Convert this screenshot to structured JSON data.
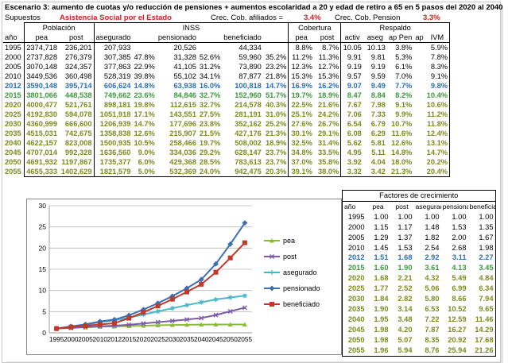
{
  "title": "Escenario 3:  aumento de cuotas y/o reducción de pensiones + aumentos escolaridad a 20 y edad de retiro a 65 en 5 pasos del 2020 al 2040",
  "supuestos": {
    "label": "Supuestos",
    "value": "Asistencia Social por el Estado",
    "crec_afil_label": "Crec. Cob. afiliados =",
    "crec_afil_value": "3.4%",
    "crec_pen_label": "Crec. Cob. Pension",
    "crec_pen_value": "3.3%"
  },
  "groups": {
    "poblacion": "Población",
    "inss": "INSS",
    "cobertura": "Cobertura",
    "respaldo": "Respaldo"
  },
  "columns": [
    "año",
    "pea",
    "post",
    "asegurado",
    "",
    "pensionado",
    "",
    "beneficiado",
    "",
    "pea",
    "post",
    "activ",
    "aseg",
    "ap Pen",
    "ap",
    "IVM"
  ],
  "rows": [
    {
      "style": "normal",
      "cells": [
        "1995",
        "2374,718",
        "236,201",
        "207,933",
        "",
        "20,526",
        "",
        "44,334",
        "",
        "8.8%",
        "8.7%",
        "10.05",
        "10.13",
        "3.8%",
        "",
        "5.9%"
      ]
    },
    {
      "style": "normal",
      "cells": [
        "2000",
        "2737,828",
        "276,379",
        "307,385",
        "47.8%",
        "31,328",
        "52.6%",
        "59,960",
        "35.2%",
        "11.2%",
        "11.3%",
        "9.91",
        "9.81",
        "5.3%",
        "",
        "7.8%"
      ]
    },
    {
      "style": "normal",
      "cells": [
        "2005",
        "3070,148",
        "324,357",
        "377,863",
        "22.9%",
        "41,105",
        "31.2%",
        "73,890",
        "23.2%",
        "12.3%",
        "12.7%",
        "9.19",
        "9.19",
        "6.1%",
        "",
        "8.3%"
      ]
    },
    {
      "style": "normal",
      "cells": [
        "2010",
        "3449,536",
        "360,498",
        "528,319",
        "39.8%",
        "55,102",
        "34.1%",
        "87,877",
        "21.8%",
        "15.3%",
        "15.3%",
        "9.57",
        "9.59",
        "7.0%",
        "",
        "9.1%"
      ]
    },
    {
      "style": "blue",
      "cells": [
        "2012",
        "3590,148",
        "395,714",
        "606,624",
        "14.8%",
        "63,938",
        "16.0%",
        "100,818",
        "14.7%",
        "16.9%",
        "16.2%",
        "9.07",
        "9.49",
        "7.7%",
        "",
        "9.8%"
      ]
    },
    {
      "style": "green",
      "cells": [
        "2015",
        "3801,066",
        "448,538",
        "749,662",
        "23.6%",
        "84,846",
        "32.7%",
        "152,960",
        "51.7%",
        "19.7%",
        "18.9%",
        "8.47",
        "8.84",
        "8.2%",
        "",
        "10.4%"
      ]
    },
    {
      "style": "olive",
      "cells": [
        "2020",
        "4000,477",
        "521,761",
        "898,181",
        "19.8%",
        "112,615",
        "32.7%",
        "214,578",
        "40.3%",
        "22.5%",
        "21.6%",
        "7.67",
        "7.98",
        "9.1%",
        "",
        "10.6%"
      ]
    },
    {
      "style": "olive",
      "cells": [
        "2025",
        "4192,830",
        "594,078",
        "1051,918",
        "17.1%",
        "143,551",
        "27.5%",
        "281,191",
        "31.0%",
        "25.1%",
        "24.2%",
        "7.06",
        "7.33",
        "9.9%",
        "",
        "11.2%"
      ]
    },
    {
      "style": "olive",
      "cells": [
        "2030",
        "4360,999",
        "666,600",
        "1206,939",
        "14.7%",
        "177,696",
        "23.8%",
        "352,162",
        "25.2%",
        "27.6%",
        "26.7%",
        "6.54",
        "6.79",
        "10.7%",
        "",
        "11.8%"
      ]
    },
    {
      "style": "olive",
      "cells": [
        "2035",
        "4515,031",
        "742,675",
        "1358,838",
        "12.6%",
        "215,907",
        "21.5%",
        "427,176",
        "21.3%",
        "30.1%",
        "29.1%",
        "6.08",
        "6.29",
        "11.6%",
        "",
        "12.4%"
      ]
    },
    {
      "style": "olive",
      "cells": [
        "2040",
        "4622,157",
        "823,008",
        "1500,935",
        "10.5%",
        "258,466",
        "19.7%",
        "508,002",
        "18.9%",
        "32.5%",
        "31.4%",
        "5.62",
        "5.81",
        "12.6%",
        "",
        "13.1%"
      ]
    },
    {
      "style": "olive",
      "cells": [
        "2045",
        "4707,014",
        "992,328",
        "1636,560",
        "9.0%",
        "334,036",
        "29.2%",
        "628,147",
        "23.7%",
        "34.8%",
        "33.5%",
        "4.95",
        "5.11",
        "14.8%",
        "",
        "14.7%"
      ]
    },
    {
      "style": "olive",
      "cells": [
        "2050",
        "4691,932",
        "1197,867",
        "1735,377",
        "6.0%",
        "429,368",
        "28.5%",
        "783,613",
        "23.7%",
        "37.0%",
        "35.8%",
        "3.92",
        "4.04",
        "18.0%",
        "",
        "20.2%"
      ]
    },
    {
      "style": "olive",
      "cells": [
        "2055",
        "4655,333",
        "1402,629",
        "1821,579",
        "5.0%",
        "532,369",
        "24.0%",
        "942,475",
        "20.3%",
        "39.1%",
        "38.0%",
        "3.32",
        "3.42",
        "21.3%",
        "",
        "20.4%"
      ]
    }
  ],
  "factores": {
    "title": "Factores de crecimiento",
    "columns": [
      "año",
      "pea",
      "post",
      "asegurado",
      "pensionado",
      "beneficiado"
    ],
    "rows": [
      {
        "style": "normal",
        "cells": [
          "1995",
          "1.00",
          "1.00",
          "1.00",
          "1.00",
          "1.00"
        ]
      },
      {
        "style": "normal",
        "cells": [
          "2000",
          "1.15",
          "1.17",
          "1.48",
          "1.53",
          "1.35"
        ]
      },
      {
        "style": "normal",
        "cells": [
          "2005",
          "1.29",
          "1.37",
          "1.82",
          "2.00",
          "1.67"
        ]
      },
      {
        "style": "normal",
        "cells": [
          "2010",
          "1.45",
          "1.53",
          "2.54",
          "2.68",
          "1.98"
        ]
      },
      {
        "style": "blue",
        "cells": [
          "2012",
          "1.51",
          "1.68",
          "2.92",
          "3.11",
          "2.27"
        ]
      },
      {
        "style": "green",
        "cells": [
          "2015",
          "1.60",
          "1.90",
          "3.61",
          "4.13",
          "3.45"
        ]
      },
      {
        "style": "olive",
        "cells": [
          "2020",
          "1.68",
          "2.21",
          "4.32",
          "5.49",
          "4.84"
        ]
      },
      {
        "style": "olive",
        "cells": [
          "2025",
          "1.77",
          "2.52",
          "5.06",
          "6.99",
          "6.34"
        ]
      },
      {
        "style": "olive",
        "cells": [
          "2030",
          "1.84",
          "2.82",
          "5.80",
          "8.66",
          "7.94"
        ]
      },
      {
        "style": "olive",
        "cells": [
          "2035",
          "1.90",
          "3.14",
          "6.53",
          "10.52",
          "9.65"
        ]
      },
      {
        "style": "olive",
        "cells": [
          "2040",
          "1.95",
          "3.48",
          "7.22",
          "12.59",
          "11.46"
        ]
      },
      {
        "style": "olive",
        "cells": [
          "2045",
          "1.98",
          "4.20",
          "7.87",
          "16.27",
          "14.29"
        ]
      },
      {
        "style": "olive",
        "cells": [
          "2050",
          "1.98",
          "5.07",
          "8.35",
          "20.92",
          "17.68"
        ]
      },
      {
        "style": "olive",
        "cells": [
          "2055",
          "1.96",
          "5.94",
          "8.76",
          "25.94",
          "21.26"
        ]
      }
    ]
  },
  "colors": {
    "pea": "#8bbb3a",
    "post": "#7d5aa6",
    "asegurado": "#4bb6c7",
    "pensionado": "#3c6fb6",
    "beneficiado": "#c0392b",
    "blue_row": "#2a6ebb",
    "green_row": "#3a9a3a",
    "olive_row": "#7a8c1c",
    "highlight": "#d42020"
  },
  "chart_data": {
    "type": "line",
    "x": [
      "1995",
      "2000",
      "2005",
      "2010",
      "2012",
      "2015",
      "2020",
      "2025",
      "2030",
      "2035",
      "2040",
      "2045",
      "2050",
      "2055"
    ],
    "ylim": [
      0,
      30
    ],
    "yticks": [
      "0",
      "5",
      "10",
      "15",
      "20",
      "25",
      "30"
    ],
    "legend_position": "right",
    "series": [
      {
        "name": "pea",
        "marker": "triangle",
        "values": [
          1.0,
          1.15,
          1.29,
          1.45,
          1.51,
          1.6,
          1.68,
          1.77,
          1.84,
          1.9,
          1.95,
          1.98,
          1.98,
          1.96
        ]
      },
      {
        "name": "post",
        "marker": "x",
        "values": [
          1.0,
          1.17,
          1.37,
          1.53,
          1.68,
          1.9,
          2.21,
          2.52,
          2.82,
          3.14,
          3.48,
          4.2,
          5.07,
          5.94
        ]
      },
      {
        "name": "asegurado",
        "marker": "star",
        "values": [
          1.0,
          1.48,
          1.82,
          2.54,
          2.92,
          3.61,
          4.32,
          5.06,
          5.8,
          6.53,
          7.22,
          7.87,
          8.35,
          8.76
        ]
      },
      {
        "name": "pensionado",
        "marker": "diamond",
        "values": [
          1.0,
          1.53,
          2.0,
          2.68,
          3.11,
          4.13,
          5.49,
          6.99,
          8.66,
          10.52,
          12.59,
          16.27,
          20.92,
          25.94
        ]
      },
      {
        "name": "beneficiado",
        "marker": "square",
        "values": [
          1.0,
          1.35,
          1.67,
          1.98,
          2.27,
          3.45,
          4.84,
          6.34,
          7.94,
          9.65,
          11.46,
          14.29,
          17.68,
          21.26
        ]
      }
    ]
  }
}
